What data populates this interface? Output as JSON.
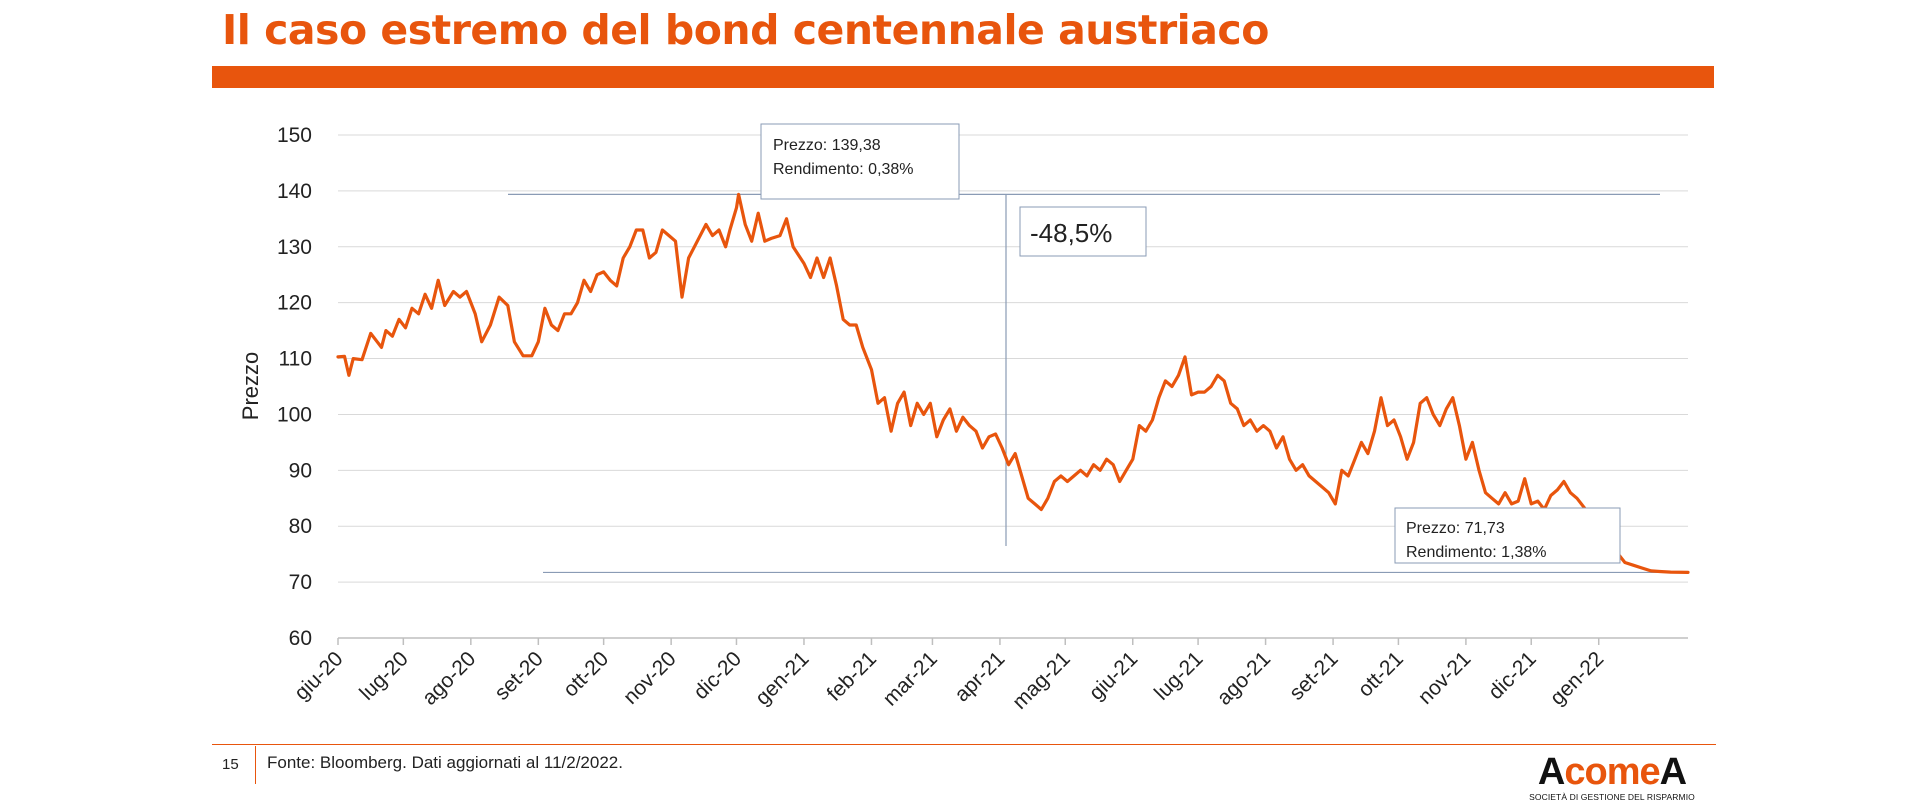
{
  "slide": {
    "title": "Il caso estremo del bond centennale austriaco",
    "page_number": "15",
    "source": "Fonte: Bloomberg. Dati aggiornati al 11/2/2022.",
    "logo": {
      "word_left": "A",
      "word_mid": "come",
      "word_right": "A",
      "tagline": "SOCIETÀ DI GESTIONE DEL RISPARMIO"
    },
    "accent_color": "#e8550d"
  },
  "chart_data": {
    "type": "line",
    "title": "",
    "xlabel": "",
    "ylabel": "Prezzo",
    "ylim": [
      60,
      150
    ],
    "y_ticks": [
      60,
      70,
      80,
      90,
      100,
      110,
      120,
      130,
      140,
      150
    ],
    "x_range": [
      "2020-06-01",
      "2022-02-11"
    ],
    "x_ticks": [
      {
        "date": "2020-06-01",
        "label": "giu-20"
      },
      {
        "date": "2020-07-01",
        "label": "lug-20"
      },
      {
        "date": "2020-08-01",
        "label": "ago-20"
      },
      {
        "date": "2020-09-01",
        "label": "set-20"
      },
      {
        "date": "2020-10-01",
        "label": "ott-20"
      },
      {
        "date": "2020-11-01",
        "label": "nov-20"
      },
      {
        "date": "2020-12-01",
        "label": "dic-20"
      },
      {
        "date": "2021-01-01",
        "label": "gen-21"
      },
      {
        "date": "2021-02-01",
        "label": "feb-21"
      },
      {
        "date": "2021-03-01",
        "label": "mar-21"
      },
      {
        "date": "2021-04-01",
        "label": "apr-21"
      },
      {
        "date": "2021-05-01",
        "label": "mag-21"
      },
      {
        "date": "2021-06-01",
        "label": "giu-21"
      },
      {
        "date": "2021-07-01",
        "label": "lug-21"
      },
      {
        "date": "2021-08-01",
        "label": "ago-21"
      },
      {
        "date": "2021-09-01",
        "label": "set-21"
      },
      {
        "date": "2021-10-01",
        "label": "ott-21"
      },
      {
        "date": "2021-11-01",
        "label": "nov-21"
      },
      {
        "date": "2021-12-01",
        "label": "dic-21"
      },
      {
        "date": "2022-01-01",
        "label": "gen-22"
      }
    ],
    "grid": true,
    "line_color": "#e8550d",
    "series": [
      {
        "points": [
          [
            "2020-06-01",
            110.3
          ],
          [
            "2020-06-04",
            110.4
          ],
          [
            "2020-06-06",
            107.0
          ],
          [
            "2020-06-08",
            110.0
          ],
          [
            "2020-06-12",
            109.8
          ],
          [
            "2020-06-16",
            114.5
          ],
          [
            "2020-06-19",
            113.0
          ],
          [
            "2020-06-21",
            112.0
          ],
          [
            "2020-06-23",
            115.0
          ],
          [
            "2020-06-26",
            114.0
          ],
          [
            "2020-06-29",
            117.0
          ],
          [
            "2020-07-02",
            115.5
          ],
          [
            "2020-07-05",
            119.0
          ],
          [
            "2020-07-08",
            118.0
          ],
          [
            "2020-07-11",
            121.5
          ],
          [
            "2020-07-14",
            119.0
          ],
          [
            "2020-07-17",
            124.0
          ],
          [
            "2020-07-20",
            119.5
          ],
          [
            "2020-07-24",
            122.0
          ],
          [
            "2020-07-27",
            121.0
          ],
          [
            "2020-07-30",
            122.0
          ],
          [
            "2020-08-03",
            118.0
          ],
          [
            "2020-08-06",
            113.0
          ],
          [
            "2020-08-10",
            116.0
          ],
          [
            "2020-08-14",
            121.0
          ],
          [
            "2020-08-18",
            119.5
          ],
          [
            "2020-08-21",
            113.0
          ],
          [
            "2020-08-25",
            110.5
          ],
          [
            "2020-08-29",
            110.5
          ],
          [
            "2020-09-01",
            113.0
          ],
          [
            "2020-09-04",
            119.0
          ],
          [
            "2020-09-07",
            116.0
          ],
          [
            "2020-09-10",
            115.0
          ],
          [
            "2020-09-13",
            118.0
          ],
          [
            "2020-09-16",
            118.0
          ],
          [
            "2020-09-19",
            120.0
          ],
          [
            "2020-09-22",
            124.0
          ],
          [
            "2020-09-25",
            122.0
          ],
          [
            "2020-09-28",
            125.0
          ],
          [
            "2020-10-01",
            125.5
          ],
          [
            "2020-10-04",
            124.0
          ],
          [
            "2020-10-07",
            123.0
          ],
          [
            "2020-10-10",
            128.0
          ],
          [
            "2020-10-13",
            130.0
          ],
          [
            "2020-10-16",
            133.0
          ],
          [
            "2020-10-19",
            133.0
          ],
          [
            "2020-10-22",
            128.0
          ],
          [
            "2020-10-25",
            129.0
          ],
          [
            "2020-10-28",
            133.0
          ],
          [
            "2020-10-31",
            132.0
          ],
          [
            "2020-11-03",
            131.0
          ],
          [
            "2020-11-06",
            121.0
          ],
          [
            "2020-11-09",
            128.0
          ],
          [
            "2020-11-13",
            131.0
          ],
          [
            "2020-11-17",
            134.0
          ],
          [
            "2020-11-20",
            132.0
          ],
          [
            "2020-11-23",
            133.0
          ],
          [
            "2020-11-26",
            130.0
          ],
          [
            "2020-11-28",
            133.0
          ],
          [
            "2020-12-01",
            137.0
          ],
          [
            "2020-12-02",
            139.38
          ],
          [
            "2020-12-05",
            134.0
          ],
          [
            "2020-12-08",
            131.0
          ],
          [
            "2020-12-11",
            136.0
          ],
          [
            "2020-12-14",
            131.0
          ],
          [
            "2020-12-17",
            131.5
          ],
          [
            "2020-12-21",
            132.0
          ],
          [
            "2020-12-24",
            135.0
          ],
          [
            "2020-12-27",
            130.0
          ],
          [
            "2021-01-01",
            127.0
          ],
          [
            "2021-01-04",
            124.5
          ],
          [
            "2021-01-07",
            128.0
          ],
          [
            "2021-01-10",
            124.5
          ],
          [
            "2021-01-13",
            128.0
          ],
          [
            "2021-01-16",
            123.0
          ],
          [
            "2021-01-19",
            117.0
          ],
          [
            "2021-01-22",
            116.0
          ],
          [
            "2021-01-25",
            116.0
          ],
          [
            "2021-01-28",
            112.0
          ],
          [
            "2021-02-01",
            108.0
          ],
          [
            "2021-02-04",
            102.0
          ],
          [
            "2021-02-07",
            103.0
          ],
          [
            "2021-02-10",
            97.0
          ],
          [
            "2021-02-13",
            102.0
          ],
          [
            "2021-02-16",
            104.0
          ],
          [
            "2021-02-19",
            98.0
          ],
          [
            "2021-02-22",
            102.0
          ],
          [
            "2021-02-25",
            100.0
          ],
          [
            "2021-02-28",
            102.0
          ],
          [
            "2021-03-03",
            96.0
          ],
          [
            "2021-03-06",
            99.0
          ],
          [
            "2021-03-09",
            101.0
          ],
          [
            "2021-03-12",
            97.0
          ],
          [
            "2021-03-15",
            99.5
          ],
          [
            "2021-03-18",
            98.0
          ],
          [
            "2021-03-21",
            97.0
          ],
          [
            "2021-03-24",
            94.0
          ],
          [
            "2021-03-27",
            96.0
          ],
          [
            "2021-03-30",
            96.5
          ],
          [
            "2021-04-02",
            94.0
          ],
          [
            "2021-04-05",
            91.0
          ],
          [
            "2021-04-08",
            93.0
          ],
          [
            "2021-04-11",
            89.0
          ],
          [
            "2021-04-14",
            85.0
          ],
          [
            "2021-04-17",
            84.0
          ],
          [
            "2021-04-20",
            83.0
          ],
          [
            "2021-04-23",
            85.0
          ],
          [
            "2021-04-26",
            88.0
          ],
          [
            "2021-04-29",
            89.0
          ],
          [
            "2021-05-02",
            88.0
          ],
          [
            "2021-05-05",
            89.0
          ],
          [
            "2021-05-08",
            90.0
          ],
          [
            "2021-05-11",
            89.0
          ],
          [
            "2021-05-14",
            91.0
          ],
          [
            "2021-05-17",
            90.0
          ],
          [
            "2021-05-20",
            92.0
          ],
          [
            "2021-05-23",
            91.0
          ],
          [
            "2021-05-26",
            88.0
          ],
          [
            "2021-05-29",
            90.0
          ],
          [
            "2021-06-01",
            92.0
          ],
          [
            "2021-06-04",
            98.0
          ],
          [
            "2021-06-07",
            97.0
          ],
          [
            "2021-06-10",
            99.0
          ],
          [
            "2021-06-13",
            103.0
          ],
          [
            "2021-06-16",
            106.0
          ],
          [
            "2021-06-19",
            105.0
          ],
          [
            "2021-06-22",
            107.0
          ],
          [
            "2021-06-25",
            110.3
          ],
          [
            "2021-06-28",
            103.5
          ],
          [
            "2021-07-01",
            104.0
          ],
          [
            "2021-07-04",
            104.0
          ],
          [
            "2021-07-07",
            105.0
          ],
          [
            "2021-07-10",
            107.0
          ],
          [
            "2021-07-13",
            106.0
          ],
          [
            "2021-07-16",
            102.0
          ],
          [
            "2021-07-19",
            101.0
          ],
          [
            "2021-07-22",
            98.0
          ],
          [
            "2021-07-25",
            99.0
          ],
          [
            "2021-07-28",
            97.0
          ],
          [
            "2021-07-31",
            98.0
          ],
          [
            "2021-08-03",
            97.0
          ],
          [
            "2021-08-06",
            94.0
          ],
          [
            "2021-08-09",
            96.0
          ],
          [
            "2021-08-12",
            92.0
          ],
          [
            "2021-08-15",
            90.0
          ],
          [
            "2021-08-18",
            91.0
          ],
          [
            "2021-08-21",
            89.0
          ],
          [
            "2021-08-24",
            88.0
          ],
          [
            "2021-08-27",
            87.0
          ],
          [
            "2021-08-30",
            86.0
          ],
          [
            "2021-09-02",
            84.0
          ],
          [
            "2021-09-05",
            90.0
          ],
          [
            "2021-09-08",
            89.0
          ],
          [
            "2021-09-11",
            92.0
          ],
          [
            "2021-09-14",
            95.0
          ],
          [
            "2021-09-17",
            93.0
          ],
          [
            "2021-09-20",
            97.0
          ],
          [
            "2021-09-23",
            103.0
          ],
          [
            "2021-09-26",
            98.0
          ],
          [
            "2021-09-29",
            99.0
          ],
          [
            "2021-10-02",
            96.0
          ],
          [
            "2021-10-05",
            92.0
          ],
          [
            "2021-10-08",
            95.0
          ],
          [
            "2021-10-11",
            102.0
          ],
          [
            "2021-10-14",
            103.0
          ],
          [
            "2021-10-17",
            100.0
          ],
          [
            "2021-10-20",
            98.0
          ],
          [
            "2021-10-23",
            101.0
          ],
          [
            "2021-10-26",
            103.0
          ],
          [
            "2021-10-29",
            98.0
          ],
          [
            "2021-11-01",
            92.0
          ],
          [
            "2021-11-04",
            95.0
          ],
          [
            "2021-11-07",
            90.0
          ],
          [
            "2021-11-10",
            86.0
          ],
          [
            "2021-11-13",
            85.0
          ],
          [
            "2021-11-16",
            84.0
          ],
          [
            "2021-11-19",
            86.0
          ],
          [
            "2021-11-22",
            84.0
          ],
          [
            "2021-11-25",
            84.5
          ],
          [
            "2021-11-28",
            88.5
          ],
          [
            "2021-12-01",
            84.0
          ],
          [
            "2021-12-04",
            84.5
          ],
          [
            "2021-12-07",
            83.0
          ],
          [
            "2021-12-10",
            85.5
          ],
          [
            "2021-12-13",
            86.5
          ],
          [
            "2021-12-16",
            88.0
          ],
          [
            "2021-12-19",
            86.0
          ],
          [
            "2021-12-22",
            85.0
          ],
          [
            "2021-12-25",
            83.5
          ],
          [
            "2021-12-28",
            82.0
          ],
          [
            "2022-01-01",
            79.0
          ],
          [
            "2022-01-05",
            77.0
          ],
          [
            "2022-01-09",
            75.5
          ],
          [
            "2022-01-13",
            73.5
          ],
          [
            "2022-01-17",
            73.0
          ],
          [
            "2022-01-21",
            72.5
          ],
          [
            "2022-01-25",
            72.0
          ],
          [
            "2022-01-29",
            71.9
          ],
          [
            "2022-02-03",
            71.8
          ],
          [
            "2022-02-11",
            71.73
          ]
        ]
      }
    ],
    "annotations": {
      "peak": {
        "price_label": "Prezzo: 139,38",
        "yield_label": "Rendimento: 0,38%",
        "value": 139.38
      },
      "drop": {
        "label": "-48,5%"
      },
      "low": {
        "price_label": "Prezzo: 71,73",
        "yield_label": "Rendimento: 1,38%",
        "value": 71.73
      },
      "guide_color": "#8a9bb5"
    }
  }
}
